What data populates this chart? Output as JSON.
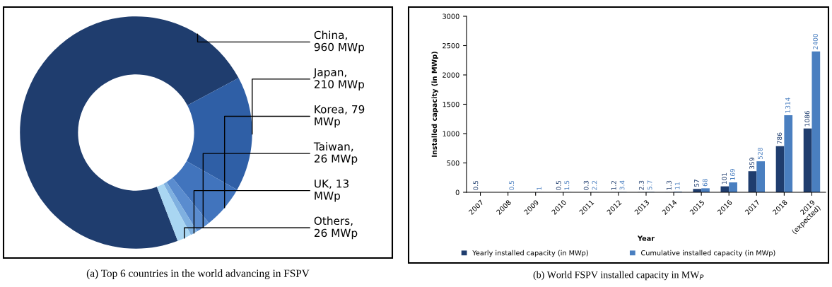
{
  "chart_data": [
    {
      "type": "donut",
      "categories": [
        "China,\n960 MWp",
        "Japan,\n210 MWp",
        "Korea, 79\nMWp",
        "Taiwan,\n26 MWp",
        "UK, 13\nMWp",
        "Others,\n26 MWp"
      ],
      "values": [
        960,
        210,
        79,
        26,
        13,
        26
      ],
      "colors": [
        "#1f3d6e",
        "#2f5fa6",
        "#4174bd",
        "#5a8ccf",
        "#7fb0e0",
        "#a9d6f2"
      ],
      "annotations": [
        "(a) Top 6 countries in the world advancing in FSPV"
      ]
    },
    {
      "type": "bar",
      "categories": [
        "2007",
        "2008",
        "2009",
        "2010",
        "2011",
        "2012",
        "2013",
        "2014",
        "2015",
        "2016",
        "2017",
        "2018",
        "2019\n(expected)"
      ],
      "xlabel": "Year",
      "ylabel": "Installed capacity (in MWp)",
      "ylim": [
        0,
        3000
      ],
      "yticks": [
        0,
        500,
        1000,
        1500,
        2000,
        2500,
        3000
      ],
      "series": [
        {
          "name": "Yearly installed capacity (in MWp)",
          "color": "#1f3d6e",
          "values": [
            0.5,
            null,
            null,
            0.5,
            0.3,
            1.2,
            2.3,
            1.3,
            57,
            101,
            359,
            786,
            1086
          ]
        },
        {
          "name": "Cumulative installed capacity (in MWp)",
          "color": "#4a7fc0",
          "values": [
            null,
            0.5,
            1,
            1.5,
            2.2,
            3.4,
            5.7,
            11,
            68,
            169,
            528,
            1314,
            2400
          ]
        }
      ],
      "data_labels": true,
      "legend": "bottom",
      "grid": false,
      "annotations": [
        "(b) World FSPV installed capacity in MW$_{P}$"
      ]
    }
  ]
}
